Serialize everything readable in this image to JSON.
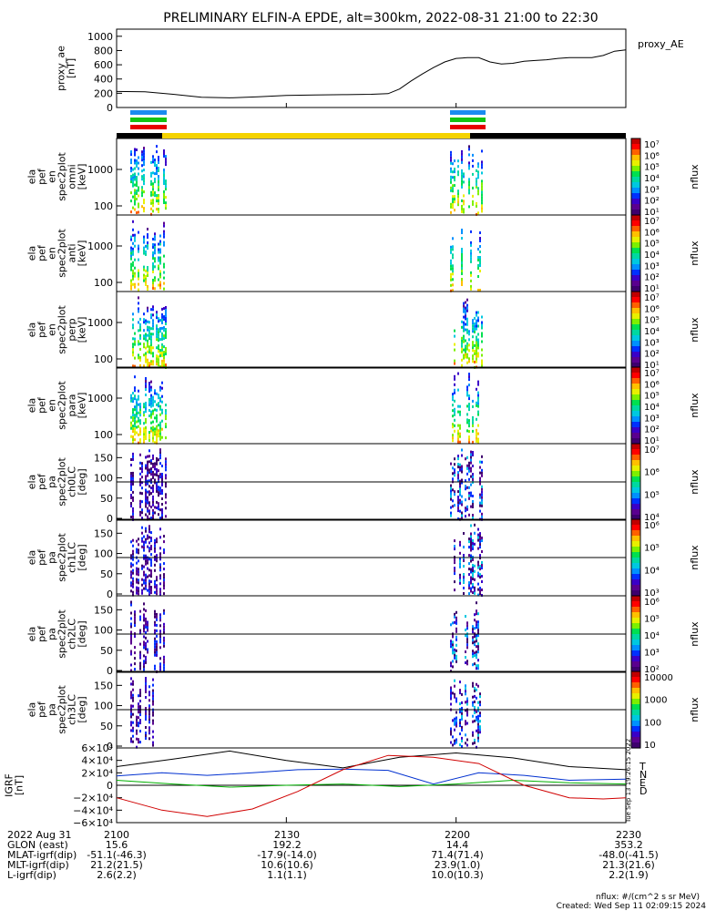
{
  "title": "PRELIMINARY ELFIN-A EPDE, alt=300km, 2022-08-31 21:00 to 22:30",
  "colors": {
    "axis": "#000000",
    "bar_yellow": "#f5d300",
    "bar_black": "#000000",
    "indicator_blue": "#1a8cf0",
    "indicator_green": "#13c313",
    "indicator_red": "#e80000",
    "series_T": "#000000",
    "series_N": "#0030d0",
    "series_E": "#00b000",
    "series_D": "#d00000"
  },
  "palette": [
    "#ffffff",
    "#3d006d",
    "#5a008f",
    "#3a00c8",
    "#0030ff",
    "#0090ff",
    "#00c8e0",
    "#00d8a0",
    "#00e050",
    "#7cf000",
    "#e8f000",
    "#ffc000",
    "#ff6000",
    "#ff0000",
    "#c00000"
  ],
  "chart_data": [
    {
      "type": "line",
      "ylabel": "proxy_ae\n[nT]",
      "legend": "proxy_AE",
      "yticks": [
        "1000",
        "800",
        "600",
        "400",
        "200",
        "0"
      ],
      "ylim": [
        0,
        1100
      ],
      "x_minutes": [
        0,
        5,
        10,
        15,
        20,
        25,
        30,
        35,
        40,
        45,
        48,
        50,
        52,
        54,
        56,
        58,
        60,
        62,
        64,
        66,
        68,
        70,
        72,
        74,
        76,
        78,
        80,
        82,
        84,
        86,
        88,
        90
      ],
      "values": [
        225,
        220,
        185,
        145,
        135,
        150,
        170,
        175,
        180,
        185,
        195,
        260,
        370,
        470,
        560,
        640,
        690,
        700,
        700,
        640,
        610,
        620,
        650,
        660,
        670,
        690,
        700,
        700,
        700,
        730,
        790,
        810
      ]
    },
    {
      "type": "heatmap",
      "ylabel": "ela\npef\nen\nspec2plot\nomni\n[keV]",
      "yticks": [
        "1000",
        "100"
      ],
      "colorbar_label": "nflux",
      "colorbar_ticks": [
        "10⁷",
        "10⁶",
        "10⁵",
        "10⁴",
        "10³",
        "10²",
        "10¹"
      ]
    },
    {
      "type": "heatmap",
      "ylabel": "ela\npef\nen\nspec2plot\nanti\n[keV]",
      "yticks": [
        "1000",
        "100"
      ],
      "colorbar_label": "nflux",
      "colorbar_ticks": [
        "10⁷",
        "10⁶",
        "10⁵",
        "10⁴",
        "10³",
        "10²",
        "10¹"
      ]
    },
    {
      "type": "heatmap",
      "ylabel": "ela\npef\nen\nspec2plot\nperp\n[keV]",
      "yticks": [
        "1000",
        "100"
      ],
      "colorbar_label": "nflux",
      "colorbar_ticks": [
        "10⁷",
        "10⁶",
        "10⁵",
        "10⁴",
        "10³",
        "10²",
        "10¹"
      ]
    },
    {
      "type": "heatmap",
      "ylabel": "ela\npef\nen\nspec2plot\npara\n[keV]",
      "yticks": [
        "1000",
        "100"
      ],
      "colorbar_label": "nflux",
      "colorbar_ticks": [
        "10⁷",
        "10⁶",
        "10⁵",
        "10⁴",
        "10³",
        "10²",
        "10¹"
      ]
    },
    {
      "type": "heatmap",
      "ylabel": "ela\npef\npa\nspec2plot\nch0LC\n[deg]",
      "yticks": [
        "150",
        "100",
        "50",
        "0"
      ],
      "colorbar_label": "nflux",
      "colorbar_ticks": [
        "10⁷",
        "10⁶",
        "10⁵",
        "10⁴"
      ]
    },
    {
      "type": "heatmap",
      "ylabel": "ela\npef\npa\nspec2plot\nch1LC\n[deg]",
      "yticks": [
        "150",
        "100",
        "50",
        "0"
      ],
      "colorbar_label": "nflux",
      "colorbar_ticks": [
        "10⁶",
        "10⁵",
        "10⁴",
        "10³"
      ]
    },
    {
      "type": "heatmap",
      "ylabel": "ela\npef\npa\nspec2plot\nch2LC\n[deg]",
      "yticks": [
        "150",
        "100",
        "50",
        "0"
      ],
      "colorbar_label": "nflux",
      "colorbar_ticks": [
        "10⁶",
        "10⁵",
        "10⁴",
        "10³",
        "10²"
      ]
    },
    {
      "type": "heatmap",
      "ylabel": "ela\npef\npa\nspec2plot\nch3LC\n[deg]",
      "yticks": [
        "150",
        "100",
        "50",
        "0"
      ],
      "colorbar_label": "nflux",
      "colorbar_ticks": [
        "10000",
        "1000",
        "100",
        "10"
      ]
    },
    {
      "type": "line",
      "ylabel": "IGRF\n[nT]",
      "yticks": [
        "6×10⁴",
        "4×10⁴",
        "2×10⁴",
        "0",
        "−2×10⁴",
        "−4×10⁴",
        "−6×10⁴"
      ],
      "ylim": [
        -60000,
        60000
      ],
      "series": [
        {
          "name": "T",
          "x_minutes": [
            0,
            10,
            20,
            30,
            40,
            50,
            60,
            70,
            80,
            90
          ],
          "values": [
            30000,
            42000,
            55000,
            40000,
            28000,
            45000,
            52000,
            44000,
            30000,
            25000
          ]
        },
        {
          "name": "N",
          "x_minutes": [
            0,
            8,
            16,
            24,
            32,
            40,
            48,
            56,
            64,
            72,
            80,
            90
          ],
          "values": [
            15000,
            20000,
            16000,
            20000,
            25000,
            26000,
            24000,
            2000,
            20000,
            16000,
            8000,
            10000
          ]
        },
        {
          "name": "E",
          "x_minutes": [
            0,
            10,
            20,
            30,
            40,
            50,
            60,
            70,
            80,
            90
          ],
          "values": [
            8000,
            2000,
            -3000,
            0,
            2000,
            -2000,
            2000,
            8000,
            4000,
            2000
          ]
        },
        {
          "name": "D",
          "x_minutes": [
            0,
            8,
            16,
            24,
            32,
            40,
            48,
            56,
            64,
            72,
            80,
            86,
            90
          ],
          "values": [
            -20000,
            -40000,
            -50000,
            -38000,
            -10000,
            25000,
            48000,
            45000,
            35000,
            0,
            -20000,
            -22000,
            -20000
          ]
        }
      ],
      "side_stamp": "Tue Sep 13 19:26:15 2022"
    }
  ],
  "footer": {
    "rows": [
      {
        "label": "2022 Aug 31",
        "values": [
          "2100",
          "2130",
          "2200",
          "2230"
        ]
      },
      {
        "label": "GLON (east)",
        "values": [
          "15.6",
          "192.2",
          "14.4",
          "353.2"
        ]
      },
      {
        "label": "MLAT-igrf(dip)",
        "values": [
          "-51.1(-46.3)",
          "-17.9(-14.0)",
          "71.4(71.4)",
          "-48.0(-41.5)"
        ]
      },
      {
        "label": "MLT-igrf(dip)",
        "values": [
          "21.2(21.5)",
          "10.6(10.6)",
          "23.9(1.0)",
          "21.3(21.6)"
        ]
      },
      {
        "label": "L-igrf(dip)",
        "values": [
          "2.6(2.2)",
          "1.1(1.1)",
          "10.0(10.3)",
          "2.2(1.9)"
        ]
      }
    ],
    "units_note": "nflux: #/(cm^2 s sr MeV)",
    "created": "Created: Wed Sep 11 02:09:15 2024"
  }
}
